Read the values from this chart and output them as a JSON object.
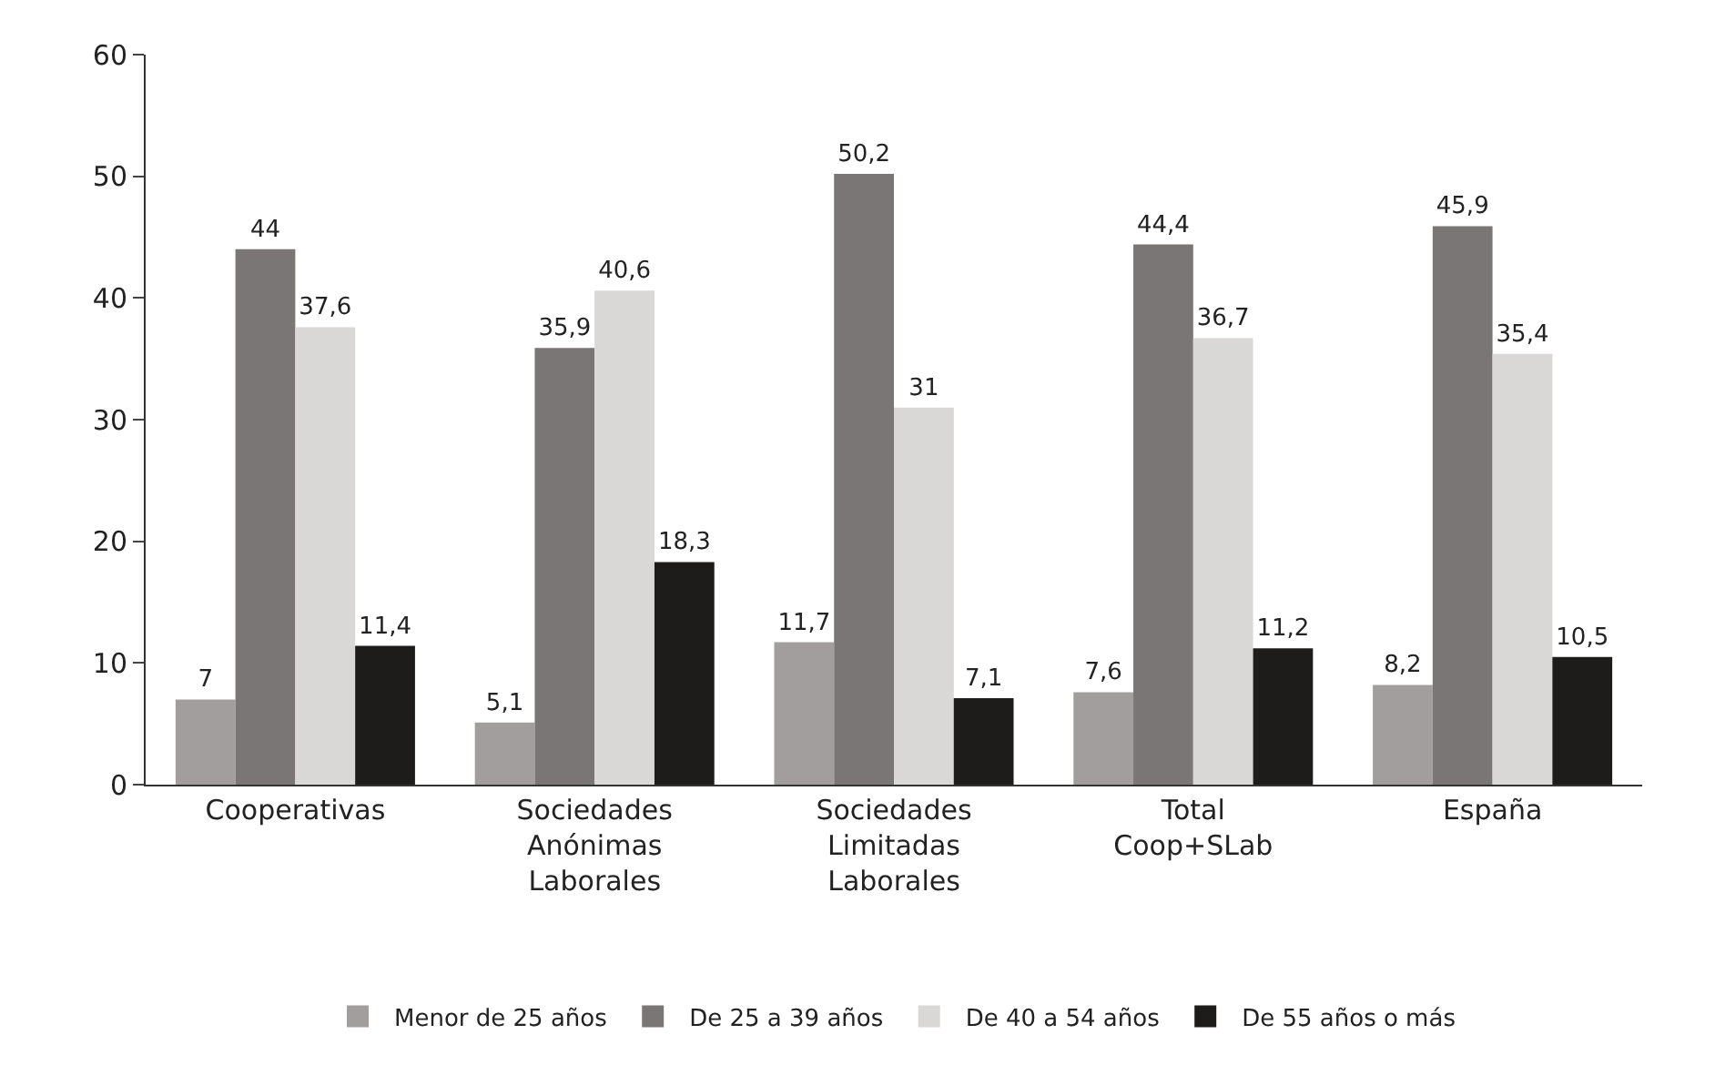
{
  "chart_data": {
    "type": "bar",
    "categories": [
      "Cooperativas",
      "Sociedades\nAnónimas\nLaborales",
      "Sociedades\nLimitadas\nLaborales",
      "Total\nCoop+SLab",
      "España"
    ],
    "series": [
      {
        "name": "Menor de 25 años",
        "color": "#a19e9d",
        "values": [
          7,
          5.1,
          11.7,
          7.6,
          8.2
        ],
        "value_labels": [
          "7",
          "5,1",
          "11,7",
          "7,6",
          "8,2"
        ]
      },
      {
        "name": "De 25 a 39 años",
        "color": "#7a7675",
        "values": [
          44,
          35.9,
          50.2,
          44.4,
          45.9
        ],
        "value_labels": [
          "44",
          "35,9",
          "50,2",
          "44,4",
          "45,9"
        ]
      },
      {
        "name": "De 40 a 54 años",
        "color": "#d9d8d7",
        "values": [
          37.6,
          40.6,
          31,
          36.7,
          35.4
        ],
        "value_labels": [
          "37,6",
          "40,6",
          "31",
          "36,7",
          "35,4"
        ]
      },
      {
        "name": "De 55 años o más",
        "color": "#1e1b1b",
        "values": [
          11.4,
          18.3,
          7.1,
          11.2,
          10.5
        ],
        "value_labels": [
          "11,4",
          "18,3",
          "7,1",
          "11,2",
          "10,5"
        ]
      }
    ],
    "ylim": [
      0,
      60
    ],
    "yticks": [
      0,
      10,
      20,
      30,
      40,
      50,
      60
    ],
    "legend": "bottom"
  }
}
